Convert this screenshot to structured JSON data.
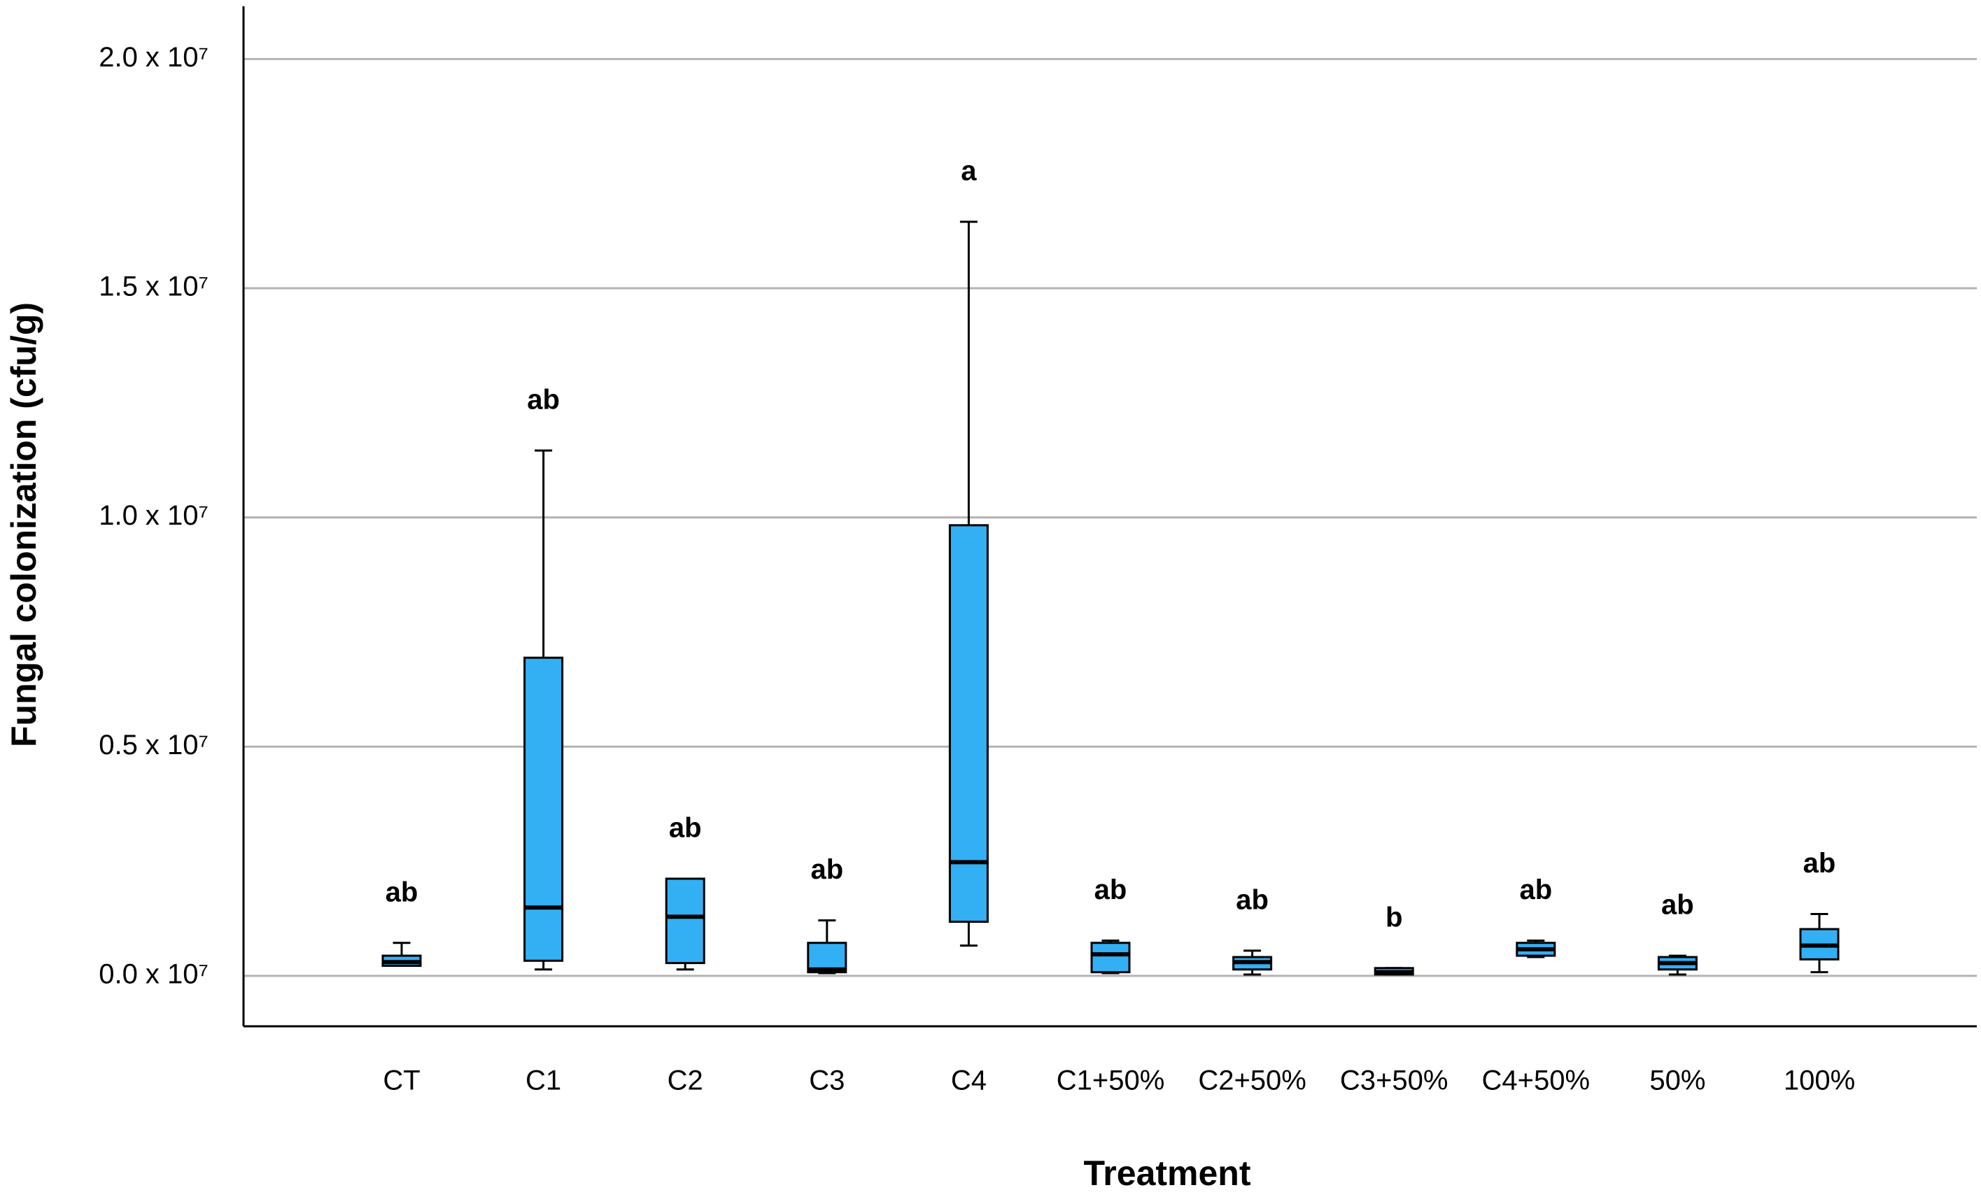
{
  "chart_data": {
    "type": "boxplot",
    "x_label": "Treatment",
    "y_label": "Fungal colonization (cfu/g)",
    "categories": [
      "CT",
      "C1",
      "C2",
      "C3",
      "C4",
      "C1+50%",
      "C2+50%",
      "C3+50%",
      "C4+50%",
      "50%",
      "100%"
    ],
    "min": [
      220000,
      140000,
      140000,
      60000,
      660000,
      60000,
      30000,
      30000,
      410000,
      30000,
      80000
    ],
    "q1": [
      220000,
      330000,
      280000,
      80000,
      1180000,
      80000,
      140000,
      30000,
      440000,
      140000,
      360000
    ],
    "median": [
      300000,
      1490000,
      1290000,
      140000,
      2480000,
      470000,
      300000,
      80000,
      580000,
      280000,
      660000
    ],
    "q3": [
      440000,
      6940000,
      2120000,
      720000,
      9830000,
      720000,
      410000,
      170000,
      720000,
      410000,
      1020000
    ],
    "max": [
      720000,
      11460000,
      2120000,
      1210000,
      16450000,
      770000,
      550000,
      170000,
      770000,
      440000,
      1350000
    ],
    "annotations": [
      "ab",
      "ab",
      "ab",
      "ab",
      "a",
      "ab",
      "ab",
      "b",
      "ab",
      "ab",
      "ab"
    ],
    "color": "#33b0f4",
    "ylim": [
      -1100000,
      21150000
    ],
    "yticks": [
      {
        "value": 0,
        "label": "0.0 x 10⁷"
      },
      {
        "value": 5000000,
        "label": "0.5 x 10⁷"
      },
      {
        "value": 10000000,
        "label": "1.0 x 10⁷"
      },
      {
        "value": 15000000,
        "label": "1.5 x 10⁷"
      },
      {
        "value": 20000000,
        "label": "2.0 x 10⁷"
      }
    ],
    "grid": true
  }
}
